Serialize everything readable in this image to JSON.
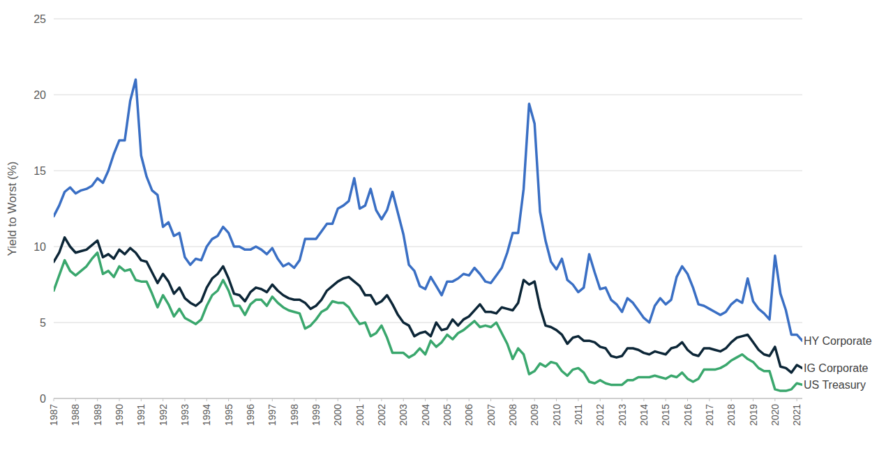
{
  "chart_data": {
    "type": "line",
    "y_label": "Yield to Worst (%)",
    "x": [
      1987,
      1987.25,
      1987.5,
      1987.75,
      1988,
      1988.25,
      1988.5,
      1988.75,
      1989,
      1989.25,
      1989.5,
      1989.75,
      1990,
      1990.25,
      1990.5,
      1990.75,
      1991,
      1991.25,
      1991.5,
      1991.75,
      1992,
      1992.25,
      1992.5,
      1992.75,
      1993,
      1993.25,
      1993.5,
      1993.75,
      1994,
      1994.25,
      1994.5,
      1994.75,
      1995,
      1995.25,
      1995.5,
      1995.75,
      1996,
      1996.25,
      1996.5,
      1996.75,
      1997,
      1997.25,
      1997.5,
      1997.75,
      1998,
      1998.25,
      1998.5,
      1998.75,
      1999,
      1999.25,
      1999.5,
      1999.75,
      2000,
      2000.25,
      2000.5,
      2000.75,
      2001,
      2001.25,
      2001.5,
      2001.75,
      2002,
      2002.25,
      2002.5,
      2002.75,
      2003,
      2003.25,
      2003.5,
      2003.75,
      2004,
      2004.25,
      2004.5,
      2004.75,
      2005,
      2005.25,
      2005.5,
      2005.75,
      2006,
      2006.25,
      2006.5,
      2006.75,
      2007,
      2007.25,
      2007.5,
      2007.75,
      2008,
      2008.25,
      2008.5,
      2008.75,
      2009,
      2009.25,
      2009.5,
      2009.75,
      2010,
      2010.25,
      2010.5,
      2010.75,
      2011,
      2011.25,
      2011.5,
      2011.75,
      2012,
      2012.25,
      2012.5,
      2012.75,
      2013,
      2013.25,
      2013.5,
      2013.75,
      2014,
      2014.25,
      2014.5,
      2014.75,
      2015,
      2015.25,
      2015.5,
      2015.75,
      2016,
      2016.25,
      2016.5,
      2016.75,
      2017,
      2017.25,
      2017.5,
      2017.75,
      2018,
      2018.25,
      2018.5,
      2018.75,
      2019,
      2019.25,
      2019.5,
      2019.75,
      2020,
      2020.25,
      2020.5,
      2020.75,
      2021,
      2021.25
    ],
    "series": [
      {
        "name": "HY Corporate",
        "color": "#3a6fc4",
        "values": [
          12.0,
          12.7,
          13.6,
          13.9,
          13.5,
          13.7,
          13.8,
          14.0,
          14.5,
          14.2,
          15.0,
          16.1,
          17.0,
          17.0,
          19.6,
          21.0,
          16.0,
          14.6,
          13.7,
          13.4,
          11.3,
          11.6,
          10.7,
          10.9,
          9.3,
          8.8,
          9.2,
          9.1,
          10.0,
          10.5,
          10.7,
          11.3,
          10.9,
          10.0,
          10.0,
          9.8,
          9.8,
          10.0,
          9.8,
          9.5,
          9.9,
          9.2,
          8.7,
          8.9,
          8.6,
          9.1,
          10.5,
          10.5,
          10.5,
          11.0,
          11.5,
          11.5,
          12.5,
          12.7,
          13.0,
          14.5,
          12.5,
          12.7,
          13.8,
          12.4,
          11.8,
          12.4,
          13.6,
          12.2,
          10.8,
          8.8,
          8.4,
          7.4,
          7.2,
          8.0,
          7.4,
          6.8,
          7.7,
          7.7,
          7.9,
          8.2,
          8.1,
          8.6,
          8.2,
          7.7,
          7.6,
          8.1,
          8.6,
          9.6,
          10.9,
          10.9,
          13.8,
          19.4,
          18.1,
          12.3,
          10.4,
          9.0,
          8.5,
          9.2,
          7.8,
          7.5,
          7.0,
          7.3,
          9.5,
          8.3,
          7.2,
          7.3,
          6.5,
          6.2,
          5.7,
          6.6,
          6.3,
          5.8,
          5.3,
          5.0,
          6.1,
          6.6,
          6.2,
          6.5,
          8.0,
          8.7,
          8.2,
          7.3,
          6.2,
          6.1,
          5.9,
          5.7,
          5.5,
          5.7,
          6.2,
          6.5,
          6.3,
          7.9,
          6.4,
          5.9,
          5.6,
          5.2,
          9.4,
          6.9,
          5.8,
          4.2,
          4.2,
          3.8
        ]
      },
      {
        "name": "IG Corporate",
        "color": "#0c2637",
        "values": [
          9.0,
          9.6,
          10.6,
          10.0,
          9.6,
          9.7,
          9.8,
          10.1,
          10.4,
          9.3,
          9.5,
          9.2,
          9.8,
          9.5,
          9.9,
          9.6,
          9.1,
          9.0,
          8.3,
          7.6,
          8.2,
          7.7,
          6.9,
          7.3,
          6.6,
          6.3,
          6.1,
          6.4,
          7.3,
          7.9,
          8.2,
          8.7,
          7.9,
          6.9,
          6.8,
          6.4,
          7.0,
          7.3,
          7.2,
          7.0,
          7.5,
          7.1,
          6.8,
          6.6,
          6.5,
          6.5,
          6.3,
          5.9,
          6.1,
          6.5,
          7.1,
          7.4,
          7.7,
          7.9,
          8.0,
          7.7,
          7.4,
          6.8,
          6.8,
          6.2,
          6.4,
          6.8,
          6.2,
          5.5,
          5.0,
          4.8,
          4.1,
          4.3,
          4.4,
          4.1,
          5.0,
          4.5,
          4.6,
          5.2,
          4.8,
          5.2,
          5.4,
          5.8,
          6.2,
          5.7,
          5.7,
          5.6,
          6.0,
          5.9,
          5.8,
          6.3,
          7.8,
          7.5,
          7.7,
          6.0,
          4.8,
          4.7,
          4.5,
          4.2,
          3.6,
          4.0,
          4.1,
          3.8,
          3.8,
          3.7,
          3.4,
          3.3,
          2.8,
          2.7,
          2.8,
          3.3,
          3.3,
          3.2,
          3.0,
          2.9,
          3.1,
          3.0,
          2.9,
          3.3,
          3.4,
          3.7,
          3.2,
          2.9,
          2.8,
          3.3,
          3.3,
          3.2,
          3.1,
          3.3,
          3.7,
          4.0,
          4.1,
          4.2,
          3.7,
          3.2,
          2.9,
          2.8,
          3.4,
          2.1,
          2.0,
          1.7,
          2.2,
          2.0
        ]
      },
      {
        "name": "US Treasury",
        "color": "#3aa76d",
        "values": [
          7.1,
          8.1,
          9.1,
          8.4,
          8.1,
          8.4,
          8.7,
          9.2,
          9.6,
          8.2,
          8.4,
          8.0,
          8.7,
          8.4,
          8.5,
          7.8,
          7.7,
          7.7,
          6.9,
          6.0,
          6.8,
          6.2,
          5.4,
          5.9,
          5.3,
          5.1,
          4.9,
          5.2,
          6.1,
          6.8,
          7.1,
          7.8,
          7.1,
          6.1,
          6.1,
          5.5,
          6.2,
          6.5,
          6.5,
          6.1,
          6.7,
          6.3,
          6.0,
          5.8,
          5.7,
          5.6,
          4.6,
          4.8,
          5.2,
          5.7,
          5.9,
          6.4,
          6.3,
          6.3,
          6.0,
          5.4,
          4.9,
          5.0,
          4.1,
          4.3,
          4.8,
          4.0,
          3.0,
          3.0,
          3.0,
          2.7,
          2.9,
          3.3,
          2.9,
          3.8,
          3.4,
          3.7,
          4.2,
          3.9,
          4.3,
          4.5,
          4.8,
          5.1,
          4.7,
          4.8,
          4.7,
          5.0,
          4.3,
          3.6,
          2.6,
          3.3,
          2.9,
          1.6,
          1.8,
          2.3,
          2.1,
          2.4,
          2.3,
          1.8,
          1.5,
          1.9,
          2.0,
          1.7,
          1.1,
          1.0,
          1.2,
          1.0,
          0.9,
          0.9,
          0.9,
          1.2,
          1.2,
          1.4,
          1.4,
          1.4,
          1.5,
          1.4,
          1.3,
          1.5,
          1.4,
          1.7,
          1.3,
          1.1,
          1.3,
          1.9,
          1.9,
          1.9,
          2.0,
          2.2,
          2.5,
          2.7,
          2.9,
          2.6,
          2.4,
          2.0,
          1.8,
          1.8,
          0.6,
          0.5,
          0.5,
          0.6,
          1.0,
          0.9
        ]
      }
    ],
    "xlim": [
      1987,
      2021.25
    ],
    "xticks": [
      1987,
      1988,
      1989,
      1990,
      1991,
      1992,
      1993,
      1994,
      1995,
      1996,
      1997,
      1998,
      1999,
      2000,
      2001,
      2002,
      2003,
      2004,
      2005,
      2006,
      2007,
      2008,
      2009,
      2010,
      2011,
      2012,
      2013,
      2014,
      2015,
      2016,
      2017,
      2018,
      2019,
      2020,
      2021
    ],
    "ylim": [
      0,
      25
    ],
    "yticks": [
      0,
      5,
      10,
      15,
      20,
      25
    ],
    "grid": true
  }
}
